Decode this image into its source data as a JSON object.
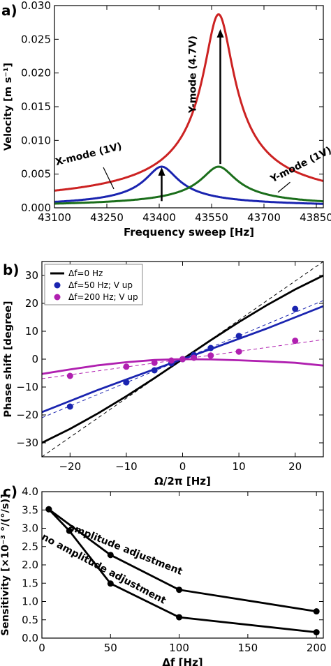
{
  "chart_data": [
    {
      "panel_label": "a)",
      "type": "line",
      "xlabel": "Frequency sweep [Hz]",
      "ylabel": "Velocity [m s⁻¹]",
      "xlim": [
        43100,
        43870
      ],
      "ylim": [
        0.0,
        0.03
      ],
      "xticks": [
        "43100",
        "43250",
        "43400",
        "43550",
        "43700",
        "43850"
      ],
      "yticks": [
        "0.000",
        "0.005",
        "0.010",
        "0.015",
        "0.020",
        "0.025",
        "0.030"
      ],
      "series": [
        {
          "color": "#cc2222",
          "f0": 43570,
          "peak": 0.0287,
          "gamma": 42
        },
        {
          "color": "#1a24b0",
          "f0": 43407,
          "peak": 0.0061,
          "gamma": 45
        },
        {
          "color": "#1b6e1b",
          "f0": 43570,
          "peak": 0.0061,
          "gamma": 48
        }
      ],
      "annotations": [
        {
          "text": "X-mode (1V)",
          "x": 43200,
          "y": 0.0075,
          "rotate": -14
        },
        {
          "text": "Y-mode (4.7V)",
          "x": 43505,
          "y": 0.0198,
          "rotate": -90
        },
        {
          "text": "Y-mode (1V)",
          "x": 43810,
          "y": 0.006,
          "rotate": -27
        }
      ],
      "arrows": [
        {
          "x": 43575,
          "y0": 0.0065,
          "y1": 0.0263
        },
        {
          "x": 43407,
          "y0": 0.001,
          "y1": 0.0058
        }
      ]
    },
    {
      "panel_label": "b)",
      "type": "line",
      "xlabel": "Ω/2π [Hz]",
      "ylabel": "Phase shift [degree]",
      "xlim": [
        -25,
        25
      ],
      "ylim": [
        -35,
        35
      ],
      "xticks": [
        "−20",
        "−10",
        "0",
        "10",
        "20"
      ],
      "yticks": [
        "−30",
        "−20",
        "−10",
        "0",
        "10",
        "20",
        "30"
      ],
      "legend": {
        "placement": "upper-left",
        "entries": [
          {
            "label": "Δf=0 Hz",
            "color": "#000000",
            "marker": "line"
          },
          {
            "label": "Δf=50 Hz; V up",
            "color": "#1a24b0",
            "marker": "dot"
          },
          {
            "label": "Δf=200 Hz; V up",
            "color": "#b020b0",
            "marker": "dot"
          }
        ]
      },
      "series": [
        {
          "color": "#000000",
          "x": [
            -25,
            -20,
            -15,
            -10,
            -5,
            0,
            5,
            10,
            15,
            20,
            25
          ],
          "y": [
            -30,
            -25,
            -19.4,
            -13.3,
            -6.8,
            0,
            6.8,
            13.3,
            19.4,
            25,
            30
          ]
        },
        {
          "color": "#1a24b0",
          "x": [
            -25,
            -20,
            -15,
            -10,
            -5,
            0,
            5,
            10,
            15,
            20,
            25
          ],
          "y": [
            -19,
            -15,
            -11,
            -7.3,
            -3.6,
            0,
            3.6,
            7.3,
            11,
            15,
            19
          ]
        },
        {
          "color": "#b020b0",
          "x": [
            -25,
            -20,
            -15,
            -10,
            -5,
            0,
            5,
            10,
            15,
            20,
            25
          ],
          "y": [
            -5.3,
            -3.7,
            -2.2,
            -1.1,
            -0.3,
            0,
            -0.1,
            -0.4,
            -0.8,
            -1.3,
            -2.3
          ]
        },
        {
          "color": "#000000",
          "dashed": true,
          "x": [
            -25,
            25
          ],
          "y": [
            -35,
            35
          ]
        },
        {
          "color": "#1a24b0",
          "dashed": true,
          "x": [
            -25,
            25
          ],
          "y": [
            -21,
            21
          ]
        },
        {
          "color": "#b020b0",
          "dashed": true,
          "x": [
            -25,
            25
          ],
          "y": [
            -7,
            7
          ]
        },
        {
          "color": "#1a24b0",
          "points": true,
          "x": [
            -20,
            -10,
            -5,
            -2,
            0,
            2,
            5,
            10,
            20
          ],
          "y": [
            -17,
            -8.3,
            -4,
            -1.5,
            0,
            1.5,
            4,
            8.3,
            18
          ]
        },
        {
          "color": "#b020b0",
          "points": true,
          "x": [
            -20,
            -10,
            -5,
            -2,
            0,
            2,
            5,
            10,
            20
          ],
          "y": [
            -6,
            -2.7,
            -1.3,
            -0.5,
            0,
            0.5,
            1.3,
            2.7,
            6.6
          ]
        }
      ]
    },
    {
      "panel_label": "c)",
      "type": "line",
      "xlabel": "Δf [Hz]",
      "ylabel": "Sensitivity [×10⁻³ °/(°/s)]",
      "xlim": [
        0,
        205
      ],
      "ylim": [
        0.0,
        4.0
      ],
      "xticks": [
        "0",
        "50",
        "100",
        "150",
        "200"
      ],
      "yticks": [
        "0.0",
        "0.5",
        "1.0",
        "1.5",
        "2.0",
        "2.5",
        "3.0",
        "3.5",
        "4.0"
      ],
      "series": [
        {
          "color": "#000000",
          "x": [
            5,
            50,
            100,
            200
          ],
          "y": [
            3.52,
            2.27,
            1.32,
            0.73
          ]
        },
        {
          "color": "#000000",
          "x": [
            5,
            20,
            50,
            100,
            200
          ],
          "y": [
            3.52,
            2.93,
            1.49,
            0.57,
            0.16
          ]
        }
      ],
      "annotations": [
        {
          "text": "amplitude adjustment",
          "x": 60,
          "y": 2.35,
          "rotate": 22
        },
        {
          "text": "no amplitude adjustment",
          "x": 44,
          "y": 1.82,
          "rotate": 28
        }
      ]
    }
  ]
}
